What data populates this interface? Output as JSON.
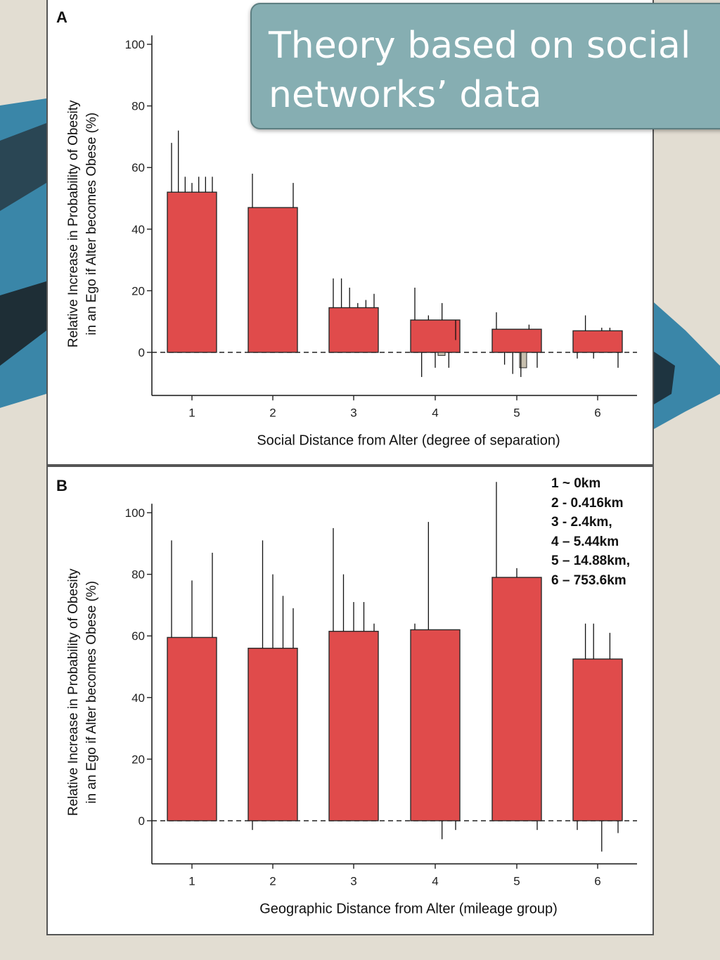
{
  "slide": {
    "title": "Theory based on social\nnetworks’ data",
    "distance_legend": [
      "1 ~ 0km",
      "2 - 0.416km",
      "3 - 2.4km,",
      "4 – 5.44km",
      "5 – 14.88km,",
      "6 – 753.6km"
    ]
  },
  "colors": {
    "bar": "#e04b4b",
    "bar_stroke": "#2a2a2a",
    "minor_bar": "#c7bfae",
    "title_box": "#86aeb2"
  },
  "chart_data": [
    {
      "panel": "A",
      "type": "bar",
      "ylabel": "Relative Increase in Probability of Obesity\nin an Ego if Alter becomes Obese (%)",
      "xlabel": "Social Distance from Alter (degree of separation)",
      "categories": [
        "1",
        "2",
        "3",
        "4",
        "5",
        "6"
      ],
      "yticks": [
        0,
        20,
        40,
        60,
        80,
        100
      ],
      "ylim": [
        -14,
        102
      ],
      "values": [
        52,
        47,
        14.5,
        10.5,
        7.5,
        7
      ],
      "negative_values": [
        null,
        null,
        null,
        -1,
        -5,
        null
      ],
      "whiskers": [
        [
          68,
          72,
          57,
          55,
          57,
          57,
          57
        ],
        [
          58,
          55
        ],
        [
          24,
          24,
          21,
          16,
          17,
          19
        ],
        [
          21,
          -8,
          12,
          -5,
          16,
          -5,
          4
        ],
        [
          13,
          -4,
          -7,
          -8,
          9,
          -5
        ],
        [
          -2,
          12,
          -2,
          8,
          8,
          -5
        ]
      ],
      "extra_tick_labels": [
        "6|"
      ],
      "grid": false,
      "zero_line": "dashed"
    },
    {
      "panel": "B",
      "type": "bar",
      "ylabel": "Relative Increase in Probability of Obesity\nin an Ego if Alter becomes Obese (%)",
      "xlabel": "Geographic Distance from Alter (mileage group)",
      "categories": [
        "1",
        "2",
        "3",
        "4",
        "5",
        "6"
      ],
      "yticks": [
        0,
        20,
        40,
        60,
        80,
        100
      ],
      "ylim": [
        -14,
        102
      ],
      "values": [
        59.5,
        56,
        61.5,
        62,
        79,
        52.5
      ],
      "whiskers": [
        [
          91,
          78,
          87
        ],
        [
          -3,
          91,
          80,
          73,
          69
        ],
        [
          95,
          80,
          71,
          71,
          64
        ],
        [
          64,
          97,
          -6,
          -3
        ],
        [
          110,
          82,
          -3
        ],
        [
          -3,
          64,
          64,
          -10,
          61,
          -4
        ]
      ],
      "grid": false,
      "zero_line": "dashed"
    }
  ]
}
